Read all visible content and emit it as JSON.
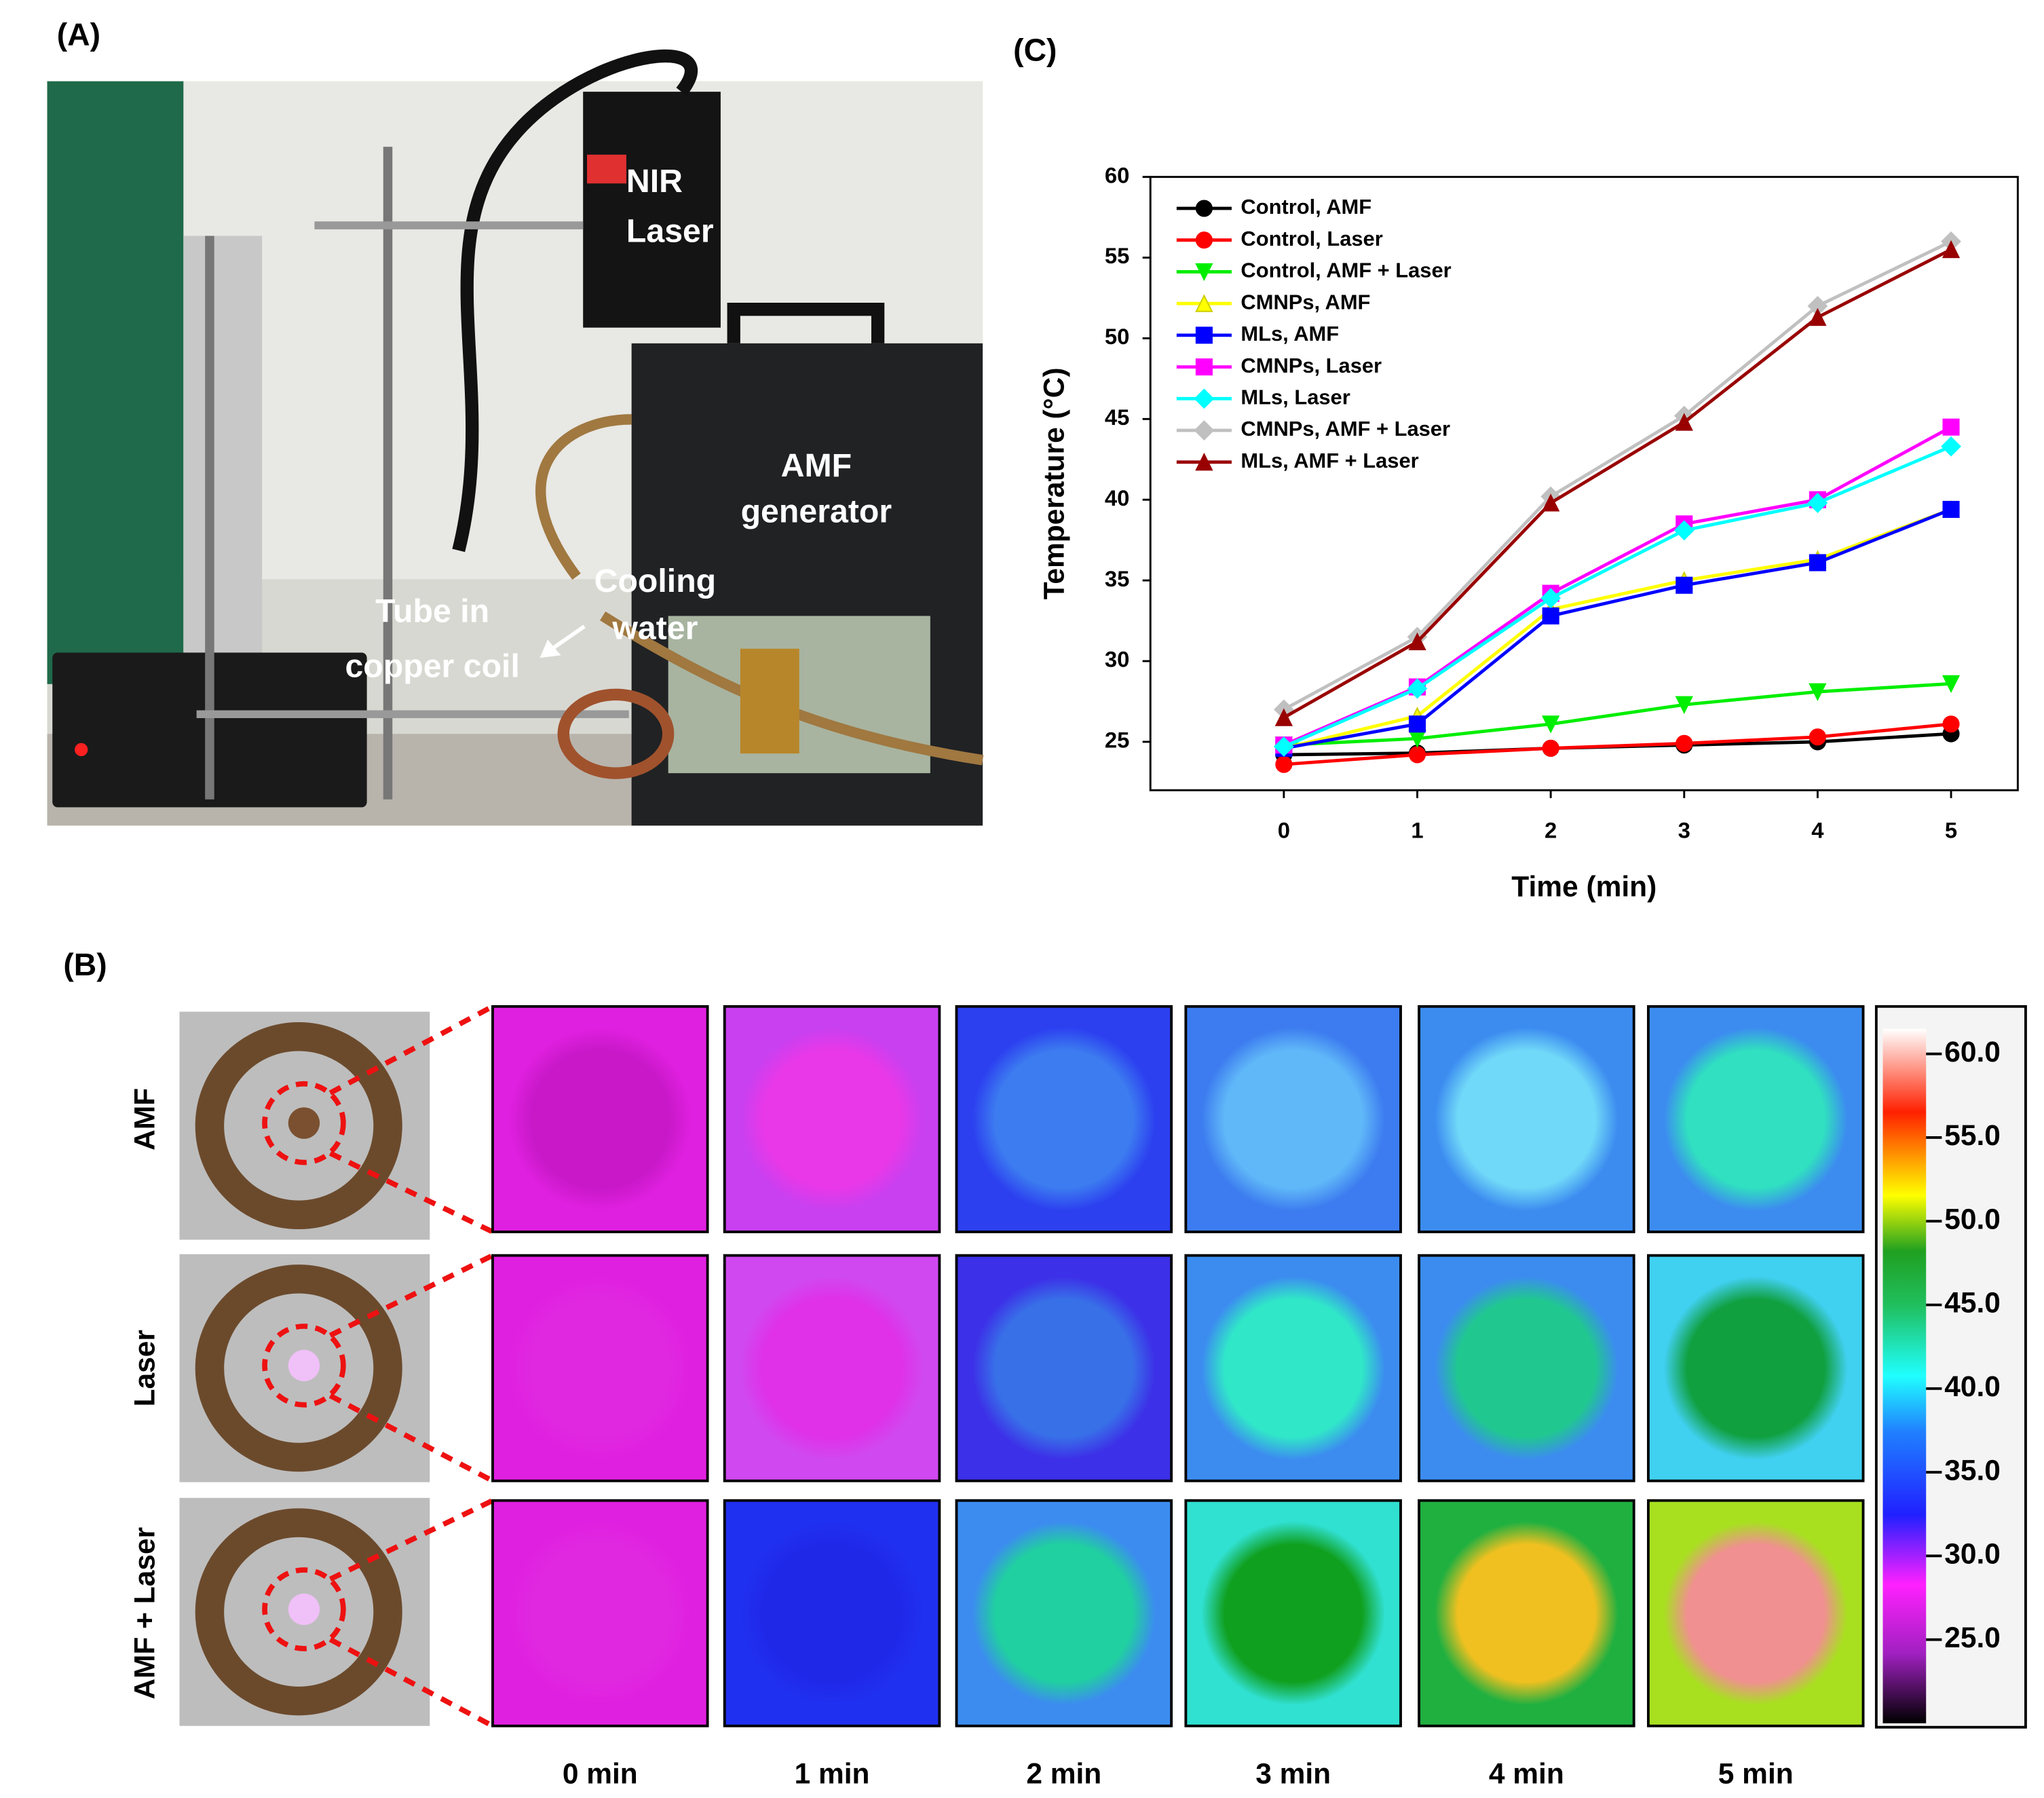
{
  "panel_labels": [
    "(A)",
    "(B)",
    "(C)"
  ],
  "photo_annotations": {
    "nir_laser": [
      "NIR",
      "Laser"
    ],
    "amf_generator": [
      "AMF",
      "generator"
    ],
    "cooling_water": [
      "Cooling",
      "water"
    ],
    "tube": [
      "Tube in",
      "copper coil"
    ]
  },
  "thermal": {
    "rows": [
      "AMF",
      "Laser",
      "AMF + Laser"
    ],
    "columns": [
      "0 min",
      "1 min",
      "2 min",
      "3 min",
      "4 min",
      "5 min"
    ],
    "cells": [
      [
        {
          "bg": "#e020e0",
          "circle": "#c818c8"
        },
        {
          "bg": "#c840f0",
          "circle": "#e838e8"
        },
        {
          "bg": "#2c40f0",
          "circle": "#3c7cf0"
        },
        {
          "bg": "#3c7cf0",
          "circle": "#60b8f8"
        },
        {
          "bg": "#3c8cf0",
          "circle": "#70d8f8"
        },
        {
          "bg": "#3c8cf0",
          "circle": "#30e0c0"
        }
      ],
      [
        {
          "bg": "#e020e0",
          "circle": "#e028e0"
        },
        {
          "bg": "#d048f0",
          "circle": "#e030e8"
        },
        {
          "bg": "#3c30e8",
          "circle": "#3870e8"
        },
        {
          "bg": "#3c8cf0",
          "circle": "#30e8c8"
        },
        {
          "bg": "#3c8cf0",
          "circle": "#20c890"
        },
        {
          "bg": "#40d0f0",
          "circle": "#10a040"
        }
      ],
      [
        {
          "bg": "#e020e0",
          "circle": "#e028e0"
        },
        {
          "bg": "#2030f0",
          "circle": "#2028e8"
        },
        {
          "bg": "#3c8cf0",
          "circle": "#20d0a0"
        },
        {
          "bg": "#30e0d0",
          "circle": "#10a020"
        },
        {
          "bg": "#20b040",
          "circle": "#f0c020"
        },
        {
          "bg": "#a8e020",
          "circle": "#f09090"
        }
      ]
    ],
    "colorbar_lim": [
      20,
      61.5
    ],
    "colorbar_ticks": [
      {
        "value": 60,
        "label": "60.0"
      },
      {
        "value": 55,
        "label": "55.0"
      },
      {
        "value": 50,
        "label": "50.0"
      },
      {
        "value": 45,
        "label": "45.0"
      },
      {
        "value": 40,
        "label": "40.0"
      },
      {
        "value": 35,
        "label": "35.0"
      },
      {
        "value": 30,
        "label": "30.0"
      },
      {
        "value": 25,
        "label": "25.0"
      }
    ]
  },
  "chart_data": {
    "type": "line",
    "xlabel": "Time (min)",
    "ylabel": "Temperature (°C)",
    "x": [
      0,
      1,
      2,
      3,
      4,
      5
    ],
    "xlim": [
      -1,
      5.5
    ],
    "xticks": [
      0,
      1,
      2,
      3,
      4,
      5
    ],
    "ylim": [
      22,
      60
    ],
    "yticks": [
      25,
      30,
      35,
      40,
      45,
      50,
      55,
      60
    ],
    "legend": "upper left",
    "series": [
      {
        "name": "Control, AMF",
        "color": "#000000",
        "marker": "circle",
        "values": [
          24.2,
          24.3,
          24.6,
          24.8,
          25.0,
          25.5
        ]
      },
      {
        "name": "Control, Laser",
        "color": "#ff0000",
        "marker": "circle",
        "values": [
          23.6,
          24.2,
          24.6,
          24.9,
          25.3,
          26.1
        ]
      },
      {
        "name": "Control, AMF + Laser",
        "color": "#00ee00",
        "marker": "triangle-down",
        "values": [
          24.8,
          25.2,
          26.1,
          27.3,
          28.1,
          28.6
        ]
      },
      {
        "name": "CMNPs, AMF",
        "color": "#ffff00",
        "marker": "triangle-up",
        "values": [
          24.6,
          26.6,
          33.2,
          35.0,
          36.3,
          39.4
        ]
      },
      {
        "name": "MLs, AMF",
        "color": "#0000ff",
        "marker": "square",
        "values": [
          24.6,
          26.1,
          32.8,
          34.7,
          36.1,
          39.4
        ]
      },
      {
        "name": "CMNPs, Laser",
        "color": "#ff00ff",
        "marker": "square",
        "values": [
          24.8,
          28.4,
          34.2,
          38.5,
          40.0,
          44.5
        ]
      },
      {
        "name": "MLs, Laser",
        "color": "#00ffff",
        "marker": "diamond",
        "values": [
          24.7,
          28.3,
          33.9,
          38.1,
          39.8,
          43.3
        ]
      },
      {
        "name": "CMNPs, AMF + Laser",
        "color": "#c0c0c0",
        "marker": "diamond",
        "values": [
          27.0,
          31.5,
          40.2,
          45.2,
          52.0,
          56.0
        ]
      },
      {
        "name": "MLs, AMF + Laser",
        "color": "#990000",
        "marker": "triangle-up",
        "values": [
          26.5,
          31.2,
          39.8,
          44.8,
          51.3,
          55.5
        ]
      }
    ]
  }
}
